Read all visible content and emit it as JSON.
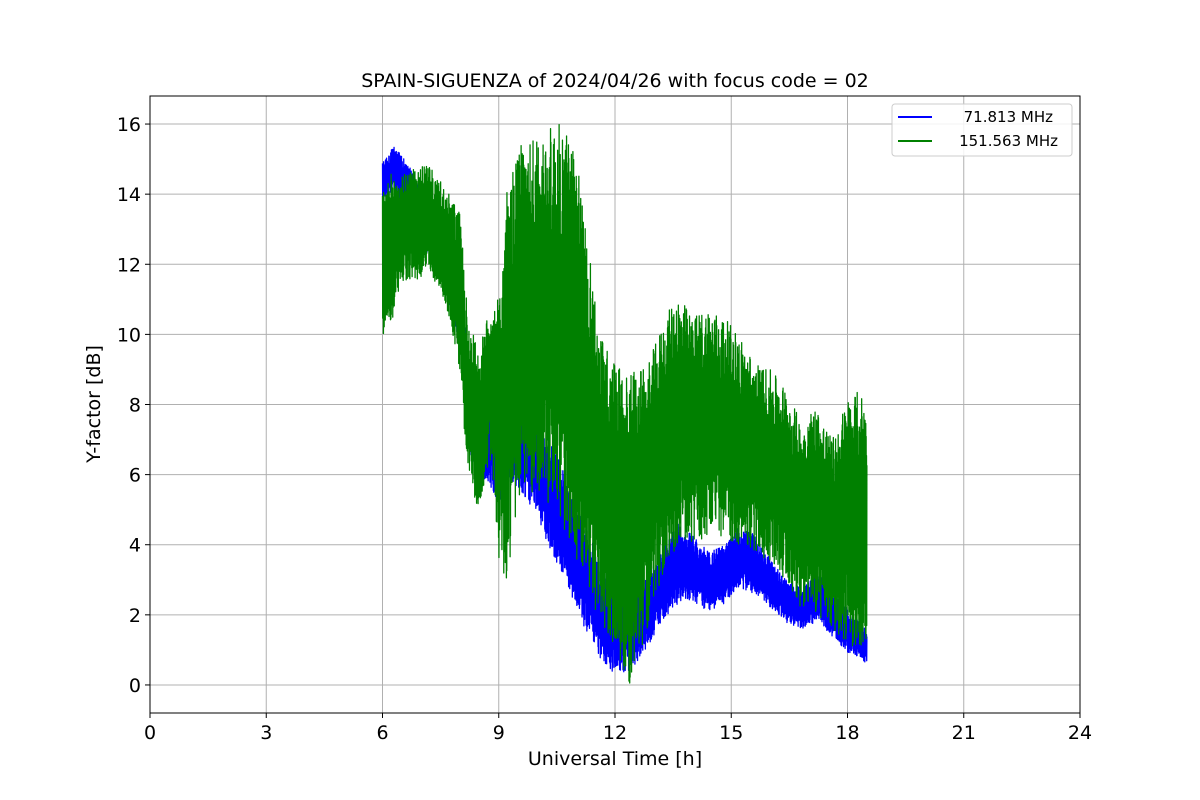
{
  "chart_data": {
    "type": "line",
    "title": "SPAIN-SIGUENZA of 2024/04/26 with focus code = 02",
    "xlabel": "Universal Time [h]",
    "ylabel": "Y-factor [dB]",
    "xlim": [
      0,
      24
    ],
    "ylim": [
      -0.8,
      16.8
    ],
    "xticks": [
      0,
      3,
      6,
      9,
      12,
      15,
      18,
      21,
      24
    ],
    "yticks": [
      0,
      2,
      4,
      6,
      8,
      10,
      12,
      14,
      16
    ],
    "grid": true,
    "legend_position": "top-right",
    "series": [
      {
        "name": "71.813 MHz",
        "color": "#0000ff",
        "points": [
          {
            "x": 6.0,
            "lo": 13.8,
            "hi": 14.9
          },
          {
            "x": 6.3,
            "lo": 14.0,
            "hi": 15.4
          },
          {
            "x": 6.6,
            "lo": 13.5,
            "hi": 15.0
          },
          {
            "x": 7.0,
            "lo": 12.5,
            "hi": 14.2
          },
          {
            "x": 7.4,
            "lo": 12.0,
            "hi": 13.8
          },
          {
            "x": 7.8,
            "lo": 10.6,
            "hi": 12.6
          },
          {
            "x": 8.0,
            "lo": 9.5,
            "hi": 11.8
          },
          {
            "x": 8.3,
            "lo": 6.2,
            "hi": 8.6
          },
          {
            "x": 8.7,
            "lo": 5.8,
            "hi": 8.2
          },
          {
            "x": 9.0,
            "lo": 5.2,
            "hi": 7.8
          },
          {
            "x": 9.3,
            "lo": 5.8,
            "hi": 8.8
          },
          {
            "x": 9.6,
            "lo": 5.5,
            "hi": 8.5
          },
          {
            "x": 10.0,
            "lo": 4.8,
            "hi": 7.6
          },
          {
            "x": 10.4,
            "lo": 3.6,
            "hi": 6.8
          },
          {
            "x": 10.8,
            "lo": 2.8,
            "hi": 5.8
          },
          {
            "x": 11.2,
            "lo": 1.6,
            "hi": 4.6
          },
          {
            "x": 11.6,
            "lo": 0.8,
            "hi": 3.6
          },
          {
            "x": 12.0,
            "lo": 0.3,
            "hi": 3.0
          },
          {
            "x": 12.4,
            "lo": 0.4,
            "hi": 2.6
          },
          {
            "x": 12.8,
            "lo": 1.0,
            "hi": 3.0
          },
          {
            "x": 13.2,
            "lo": 1.8,
            "hi": 3.8
          },
          {
            "x": 13.6,
            "lo": 2.3,
            "hi": 4.6
          },
          {
            "x": 14.0,
            "lo": 2.4,
            "hi": 4.3
          },
          {
            "x": 14.4,
            "lo": 2.1,
            "hi": 3.8
          },
          {
            "x": 14.8,
            "lo": 2.3,
            "hi": 4.0
          },
          {
            "x": 15.2,
            "lo": 2.8,
            "hi": 4.5
          },
          {
            "x": 15.6,
            "lo": 2.6,
            "hi": 4.3
          },
          {
            "x": 16.0,
            "lo": 2.2,
            "hi": 3.6
          },
          {
            "x": 16.4,
            "lo": 1.8,
            "hi": 3.0
          },
          {
            "x": 16.8,
            "lo": 1.6,
            "hi": 2.8
          },
          {
            "x": 17.2,
            "lo": 1.8,
            "hi": 3.2
          },
          {
            "x": 17.6,
            "lo": 1.4,
            "hi": 2.8
          },
          {
            "x": 18.0,
            "lo": 0.9,
            "hi": 2.2
          },
          {
            "x": 18.3,
            "lo": 0.8,
            "hi": 1.8
          },
          {
            "x": 18.5,
            "lo": 0.6,
            "hi": 1.6
          }
        ]
      },
      {
        "name": "151.563 MHz",
        "color": "#008000",
        "points": [
          {
            "x": 6.0,
            "lo": 10.0,
            "hi": 14.0
          },
          {
            "x": 6.2,
            "lo": 10.2,
            "hi": 14.6
          },
          {
            "x": 6.5,
            "lo": 11.5,
            "hi": 14.5
          },
          {
            "x": 6.8,
            "lo": 11.5,
            "hi": 14.8
          },
          {
            "x": 7.2,
            "lo": 11.8,
            "hi": 14.8
          },
          {
            "x": 7.6,
            "lo": 11.0,
            "hi": 14.2
          },
          {
            "x": 8.0,
            "lo": 9.0,
            "hi": 13.5
          },
          {
            "x": 8.2,
            "lo": 5.8,
            "hi": 10.5
          },
          {
            "x": 8.5,
            "lo": 4.8,
            "hi": 9.5
          },
          {
            "x": 8.8,
            "lo": 6.5,
            "hi": 11.0
          },
          {
            "x": 9.0,
            "lo": 3.5,
            "hi": 11.0
          },
          {
            "x": 9.2,
            "lo": 3.0,
            "hi": 14.0
          },
          {
            "x": 9.6,
            "lo": 5.5,
            "hi": 15.5
          },
          {
            "x": 10.0,
            "lo": 5.5,
            "hi": 15.6
          },
          {
            "x": 10.4,
            "lo": 5.0,
            "hi": 16.0
          },
          {
            "x": 10.8,
            "lo": 4.0,
            "hi": 16.0
          },
          {
            "x": 11.2,
            "lo": 3.0,
            "hi": 13.8
          },
          {
            "x": 11.6,
            "lo": 1.8,
            "hi": 10.0
          },
          {
            "x": 12.0,
            "lo": 1.0,
            "hi": 9.2
          },
          {
            "x": 12.4,
            "lo": 0.0,
            "hi": 9.0
          },
          {
            "x": 12.8,
            "lo": 1.5,
            "hi": 9.0
          },
          {
            "x": 13.2,
            "lo": 3.0,
            "hi": 10.2
          },
          {
            "x": 13.6,
            "lo": 4.0,
            "hi": 11.2
          },
          {
            "x": 14.0,
            "lo": 4.0,
            "hi": 10.5
          },
          {
            "x": 14.4,
            "lo": 4.2,
            "hi": 10.8
          },
          {
            "x": 14.8,
            "lo": 4.2,
            "hi": 10.5
          },
          {
            "x": 15.2,
            "lo": 4.0,
            "hi": 10.0
          },
          {
            "x": 15.6,
            "lo": 3.8,
            "hi": 9.2
          },
          {
            "x": 16.0,
            "lo": 3.5,
            "hi": 9.0
          },
          {
            "x": 16.4,
            "lo": 3.0,
            "hi": 8.5
          },
          {
            "x": 16.8,
            "lo": 2.2,
            "hi": 7.5
          },
          {
            "x": 17.2,
            "lo": 2.0,
            "hi": 8.0
          },
          {
            "x": 17.6,
            "lo": 1.5,
            "hi": 7.0
          },
          {
            "x": 18.0,
            "lo": 1.2,
            "hi": 8.2
          },
          {
            "x": 18.3,
            "lo": 1.0,
            "hi": 8.4
          },
          {
            "x": 18.5,
            "lo": 1.0,
            "hi": 8.2
          }
        ]
      }
    ]
  }
}
